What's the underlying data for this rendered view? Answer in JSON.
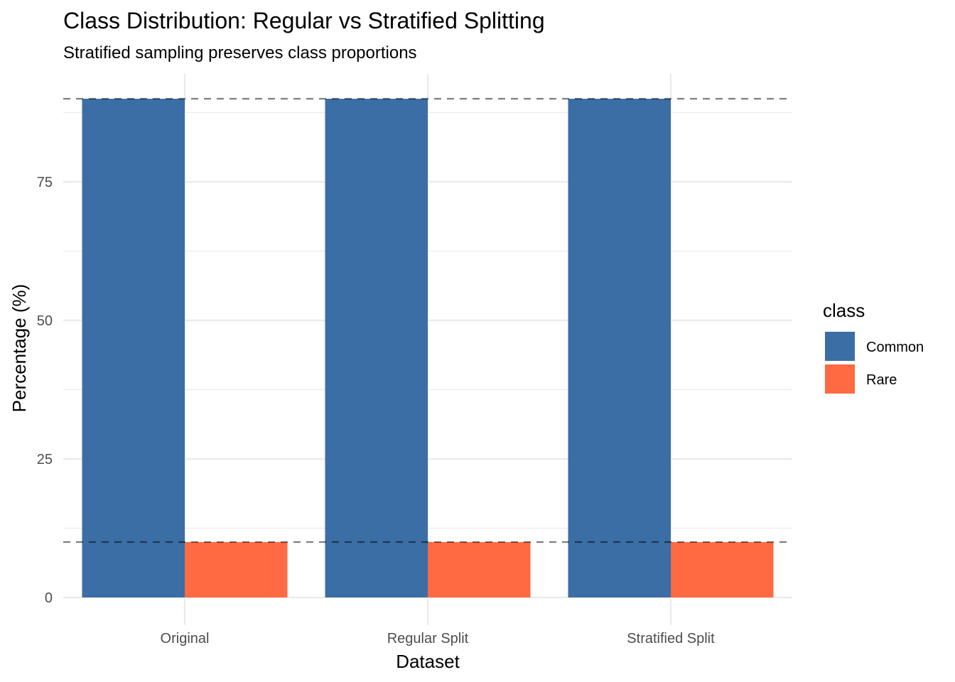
{
  "chart_data": {
    "type": "bar",
    "title": "Class Distribution: Regular vs Stratified Splitting",
    "subtitle": "Stratified sampling preserves class proportions",
    "xlabel": "Dataset",
    "ylabel": "Percentage (%)",
    "categories": [
      "Original",
      "Regular Split",
      "Stratified Split"
    ],
    "series": [
      {
        "name": "Common",
        "values": [
          90,
          90,
          90
        ],
        "color": "#3A6EA5"
      },
      {
        "name": "Rare",
        "values": [
          10,
          10,
          10
        ],
        "color": "#FF6A42"
      }
    ],
    "ylim": [
      0,
      92
    ],
    "yticks": [
      0,
      25,
      50,
      75
    ],
    "reference_lines": [
      90,
      10
    ],
    "legend": {
      "title": "class",
      "position": "right"
    },
    "grid": true,
    "bar_layout": "grouped"
  }
}
